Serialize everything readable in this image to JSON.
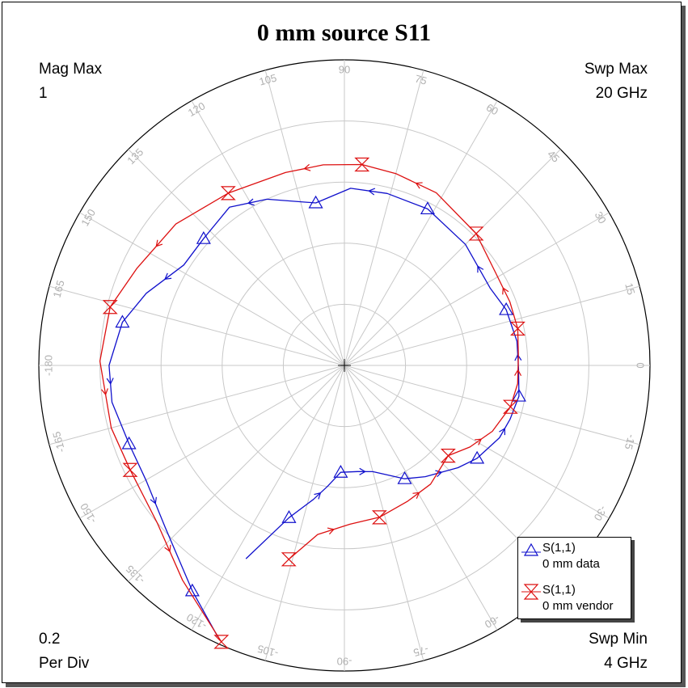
{
  "title": "0 mm source S11",
  "corners": {
    "top_left": [
      "Mag Max",
      "1"
    ],
    "top_right": [
      "Swp Max",
      "20  GHz"
    ],
    "bottom_left": [
      "0.2",
      "Per Div"
    ],
    "bottom_right": [
      "Swp Min",
      "4  GHz"
    ]
  },
  "colors": {
    "data": "#1010cc",
    "vendor": "#dd1010",
    "grid": "#c8c8c8"
  },
  "chart_data": {
    "type": "polar",
    "title": "0 mm source S11",
    "radial_max": 1,
    "radial_per_div": 0.2,
    "angle_ticks": [
      "0",
      "15",
      "30",
      "45",
      "60",
      "75",
      "90",
      "105",
      "120",
      "135",
      "150",
      "165",
      "-180",
      "-165",
      "-150",
      "-135",
      "-120",
      "-105",
      "-90",
      "-75",
      "-60",
      "-45",
      "-30",
      "-15"
    ],
    "angle_tick_values": [
      0,
      15,
      30,
      45,
      60,
      75,
      90,
      105,
      120,
      135,
      150,
      165,
      180,
      195,
      210,
      225,
      240,
      255,
      270,
      285,
      300,
      315,
      330,
      345
    ],
    "sweep": {
      "min": "4  GHz",
      "max": "20  GHz"
    },
    "series": [
      {
        "name": "S(1,1)",
        "label": "0 mm data",
        "marker": "triangle",
        "points": [
          {
            "mag": 0.71,
            "ang": -117.0
          },
          {
            "mag": 0.53,
            "ang": -110.0
          },
          {
            "mag": 0.45,
            "ang": -103.0
          },
          {
            "mag": 0.4,
            "ang": -98.0
          },
          {
            "mag": 0.35,
            "ang": -92.0
          },
          {
            "mag": 0.35,
            "ang": -83.0
          },
          {
            "mag": 0.36,
            "ang": -75.0
          },
          {
            "mag": 0.42,
            "ang": -62.0
          },
          {
            "mag": 0.45,
            "ang": -54.0
          },
          {
            "mag": 0.5,
            "ang": -42.0
          },
          {
            "mag": 0.53,
            "ang": -35.0
          },
          {
            "mag": 0.56,
            "ang": -25.0
          },
          {
            "mag": 0.57,
            "ang": -18.0
          },
          {
            "mag": 0.58,
            "ang": -10.0
          },
          {
            "mag": 0.57,
            "ang": -1.0
          },
          {
            "mag": 0.57,
            "ang": 8.0
          },
          {
            "mag": 0.56,
            "ang": 19.0
          },
          {
            "mag": 0.54,
            "ang": 28.0
          },
          {
            "mag": 0.56,
            "ang": 45.0
          },
          {
            "mag": 0.58,
            "ang": 62.0
          },
          {
            "mag": 0.58,
            "ang": 76.0
          },
          {
            "mag": 0.58,
            "ang": 88.0
          },
          {
            "mag": 0.54,
            "ang": 100.0
          },
          {
            "mag": 0.6,
            "ang": 115.0
          },
          {
            "mag": 0.64,
            "ang": 126.0
          },
          {
            "mag": 0.62,
            "ang": 138.0
          },
          {
            "mag": 0.62,
            "ang": 148.0
          },
          {
            "mag": 0.69,
            "ang": 160.0
          },
          {
            "mag": 0.74,
            "ang": 169.0
          },
          {
            "mag": 0.77,
            "ang": 180.0
          },
          {
            "mag": 0.77,
            "ang": 189.0
          },
          {
            "mag": 0.75,
            "ang": 200.0
          },
          {
            "mag": 0.75,
            "ang": 210.0
          },
          {
            "mag": 0.79,
            "ang": 222.0
          },
          {
            "mag": 0.89,
            "ang": 236.0
          },
          {
            "mag": 0.98,
            "ang": 245.0
          }
        ]
      },
      {
        "name": "S(1,1)",
        "label": "0 mm vendor",
        "marker": "hourglass",
        "points": [
          {
            "mag": 0.66,
            "ang": -106.0
          },
          {
            "mag": 0.56,
            "ang": -99.0
          },
          {
            "mag": 0.52,
            "ang": -88.0
          },
          {
            "mag": 0.51,
            "ang": -77.0
          },
          {
            "mag": 0.49,
            "ang": -65.0
          },
          {
            "mag": 0.48,
            "ang": -54.0
          },
          {
            "mag": 0.45,
            "ang": -41.0
          },
          {
            "mag": 0.49,
            "ang": -33.0
          },
          {
            "mag": 0.53,
            "ang": -24.0
          },
          {
            "mag": 0.56,
            "ang": -14.0
          },
          {
            "mag": 0.57,
            "ang": -6.0
          },
          {
            "mag": 0.57,
            "ang": 3.0
          },
          {
            "mag": 0.58,
            "ang": 12.0
          },
          {
            "mag": 0.58,
            "ang": 21.0
          },
          {
            "mag": 0.58,
            "ang": 31.0
          },
          {
            "mag": 0.61,
            "ang": 45.0
          },
          {
            "mag": 0.64,
            "ang": 62.0
          },
          {
            "mag": 0.65,
            "ang": 75.0
          },
          {
            "mag": 0.66,
            "ang": 85.0
          },
          {
            "mag": 0.66,
            "ang": 96.0
          },
          {
            "mag": 0.66,
            "ang": 107.0
          },
          {
            "mag": 0.68,
            "ang": 124.0
          },
          {
            "mag": 0.72,
            "ang": 140.0
          },
          {
            "mag": 0.75,
            "ang": 155.0
          },
          {
            "mag": 0.79,
            "ang": 166.0
          },
          {
            "mag": 0.8,
            "ang": 179.0
          },
          {
            "mag": 0.79,
            "ang": 195.0
          },
          {
            "mag": 0.78,
            "ang": 206.0
          },
          {
            "mag": 0.8,
            "ang": 220.0
          },
          {
            "mag": 0.88,
            "ang": 233.0
          },
          {
            "mag": 0.99,
            "ang": 246.0
          }
        ]
      }
    ]
  },
  "legend": [
    {
      "name": "S(1,1)",
      "label": "0 mm data"
    },
    {
      "name": "S(1,1)",
      "label": "0 mm vendor"
    }
  ]
}
